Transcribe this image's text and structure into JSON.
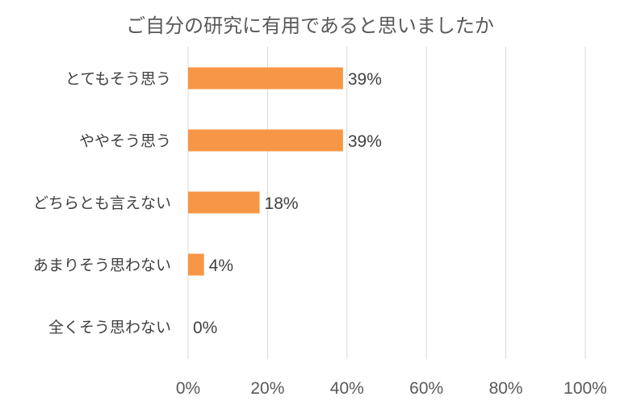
{
  "chart_data": {
    "type": "bar",
    "orientation": "horizontal",
    "title": "ご自分の研究に有用であると思いましたか",
    "categories": [
      "とてもそう思う",
      "ややそう思う",
      "どちらとも言えない",
      "あまりそう思わない",
      "全くそう思わない"
    ],
    "values": [
      39,
      39,
      18,
      4,
      0
    ],
    "data_labels": [
      "39%",
      "39%",
      "18%",
      "4%",
      "0%"
    ],
    "xlim": [
      0,
      100
    ],
    "x_ticks": [
      "0%",
      "20%",
      "40%",
      "60%",
      "80%",
      "100%"
    ],
    "grid": true,
    "bar_color": "#f79646",
    "legend": "none"
  }
}
